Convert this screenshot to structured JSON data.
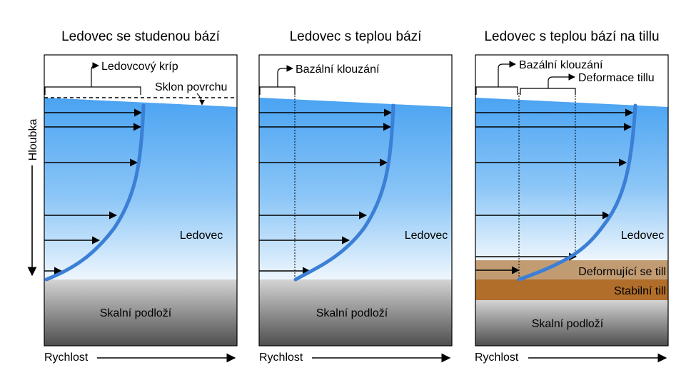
{
  "panels": [
    {
      "title": "Ledovec se studenou bází",
      "ice_label": "Ledovec",
      "bed_label": "Skalní podloží",
      "velocity_label": "Rychlost",
      "depth_label": "Hloubka",
      "annotations": {
        "creep": "Ledovcový kríp",
        "surface_slope": "Sklon povrchu"
      }
    },
    {
      "title": "Ledovec s teplou bází",
      "ice_label": "Ledovec",
      "bed_label": "Skalní podloží",
      "velocity_label": "Rychlost",
      "annotations": {
        "sliding": "Bazální klouzání"
      }
    },
    {
      "title": "Ledovec s teplou bází na tillu",
      "ice_label": "Ledovec",
      "bed_label": "Skalní podloží",
      "velocity_label": "Rychlost",
      "till_deforming_label": "Deformující se till",
      "till_stable_label": "Stabilní till",
      "annotations": {
        "sliding": "Bazální klouzání",
        "till_deformation": "Deformace tillu"
      }
    }
  ],
  "colors": {
    "ice_top": "#4aa3f2",
    "ice_bottom": "#e8f3fc",
    "profile_line": "#3b7fd6",
    "bed_top": "#c8c8c8",
    "bed_bottom": "#555555",
    "till_deforming": "#c19c73",
    "till_stable": "#b06e2a"
  }
}
